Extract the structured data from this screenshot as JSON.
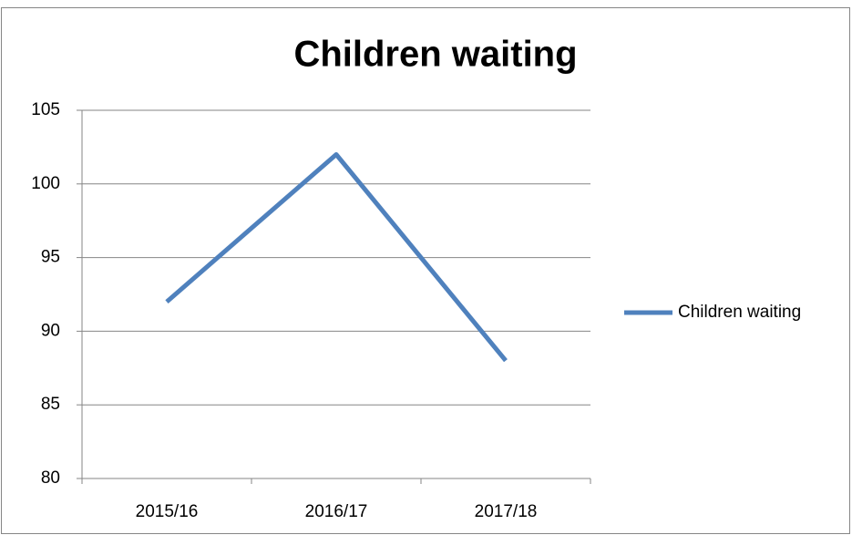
{
  "chart_data": {
    "type": "line",
    "title": "Children waiting",
    "categories": [
      "2015/16",
      "2016/17",
      "2017/18"
    ],
    "series": [
      {
        "name": "Children waiting",
        "color": "#4f81bd",
        "values": [
          92,
          102,
          88
        ]
      }
    ],
    "ylim": [
      80,
      105
    ],
    "yticks": [
      80,
      85,
      90,
      95,
      100,
      105
    ],
    "grid": true,
    "legend": "right"
  }
}
